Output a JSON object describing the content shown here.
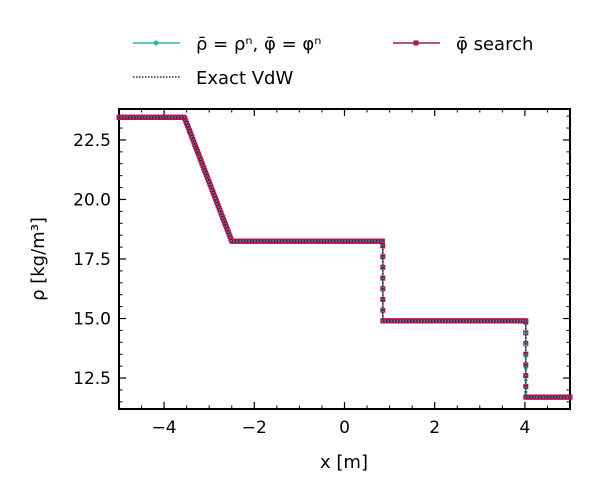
{
  "chart_data": {
    "type": "line",
    "xlabel": "x [m]",
    "ylabel": "ρ [kg/m³]",
    "xlim": [
      -5,
      5
    ],
    "ylim": [
      11.2,
      23.8
    ],
    "xticks": [
      -4,
      -2,
      0,
      2,
      4
    ],
    "xtick_labels": [
      "−4",
      "−2",
      "0",
      "2",
      "4"
    ],
    "yticks": [
      12.5,
      15.0,
      17.5,
      20.0,
      22.5
    ],
    "ytick_labels": [
      "12.5",
      "15.0",
      "17.5",
      "20.0",
      "22.5"
    ],
    "grid": false,
    "legend_position": "top",
    "series": [
      {
        "name": "ρ̄ = ρⁿ,  φ̄ = φⁿ",
        "color": "#2ab5a5",
        "style": "solid-line-small-dot-markers",
        "x": [
          -5,
          -3.55,
          -2.5,
          0.85,
          0.85,
          4.02,
          4.02,
          5
        ],
        "y": [
          23.45,
          23.45,
          18.25,
          18.25,
          14.9,
          14.9,
          11.7,
          11.7
        ]
      },
      {
        "name": "Exact VdW",
        "color": "#000000",
        "style": "dotted-line",
        "x": [
          -5,
          -3.55,
          -2.5,
          0.85,
          0.85,
          4.02,
          4.02,
          5
        ],
        "y": [
          23.45,
          23.45,
          18.25,
          18.25,
          14.9,
          14.9,
          11.7,
          11.7
        ]
      },
      {
        "name": "φ̄ search",
        "color": "#b0125a",
        "style": "solid-line-square-markers",
        "x": [
          -5,
          -3.55,
          -2.5,
          0.85,
          0.85,
          4.02,
          4.02,
          5
        ],
        "y": [
          23.45,
          23.45,
          18.25,
          18.25,
          14.9,
          14.9,
          11.7,
          11.7
        ]
      }
    ]
  }
}
